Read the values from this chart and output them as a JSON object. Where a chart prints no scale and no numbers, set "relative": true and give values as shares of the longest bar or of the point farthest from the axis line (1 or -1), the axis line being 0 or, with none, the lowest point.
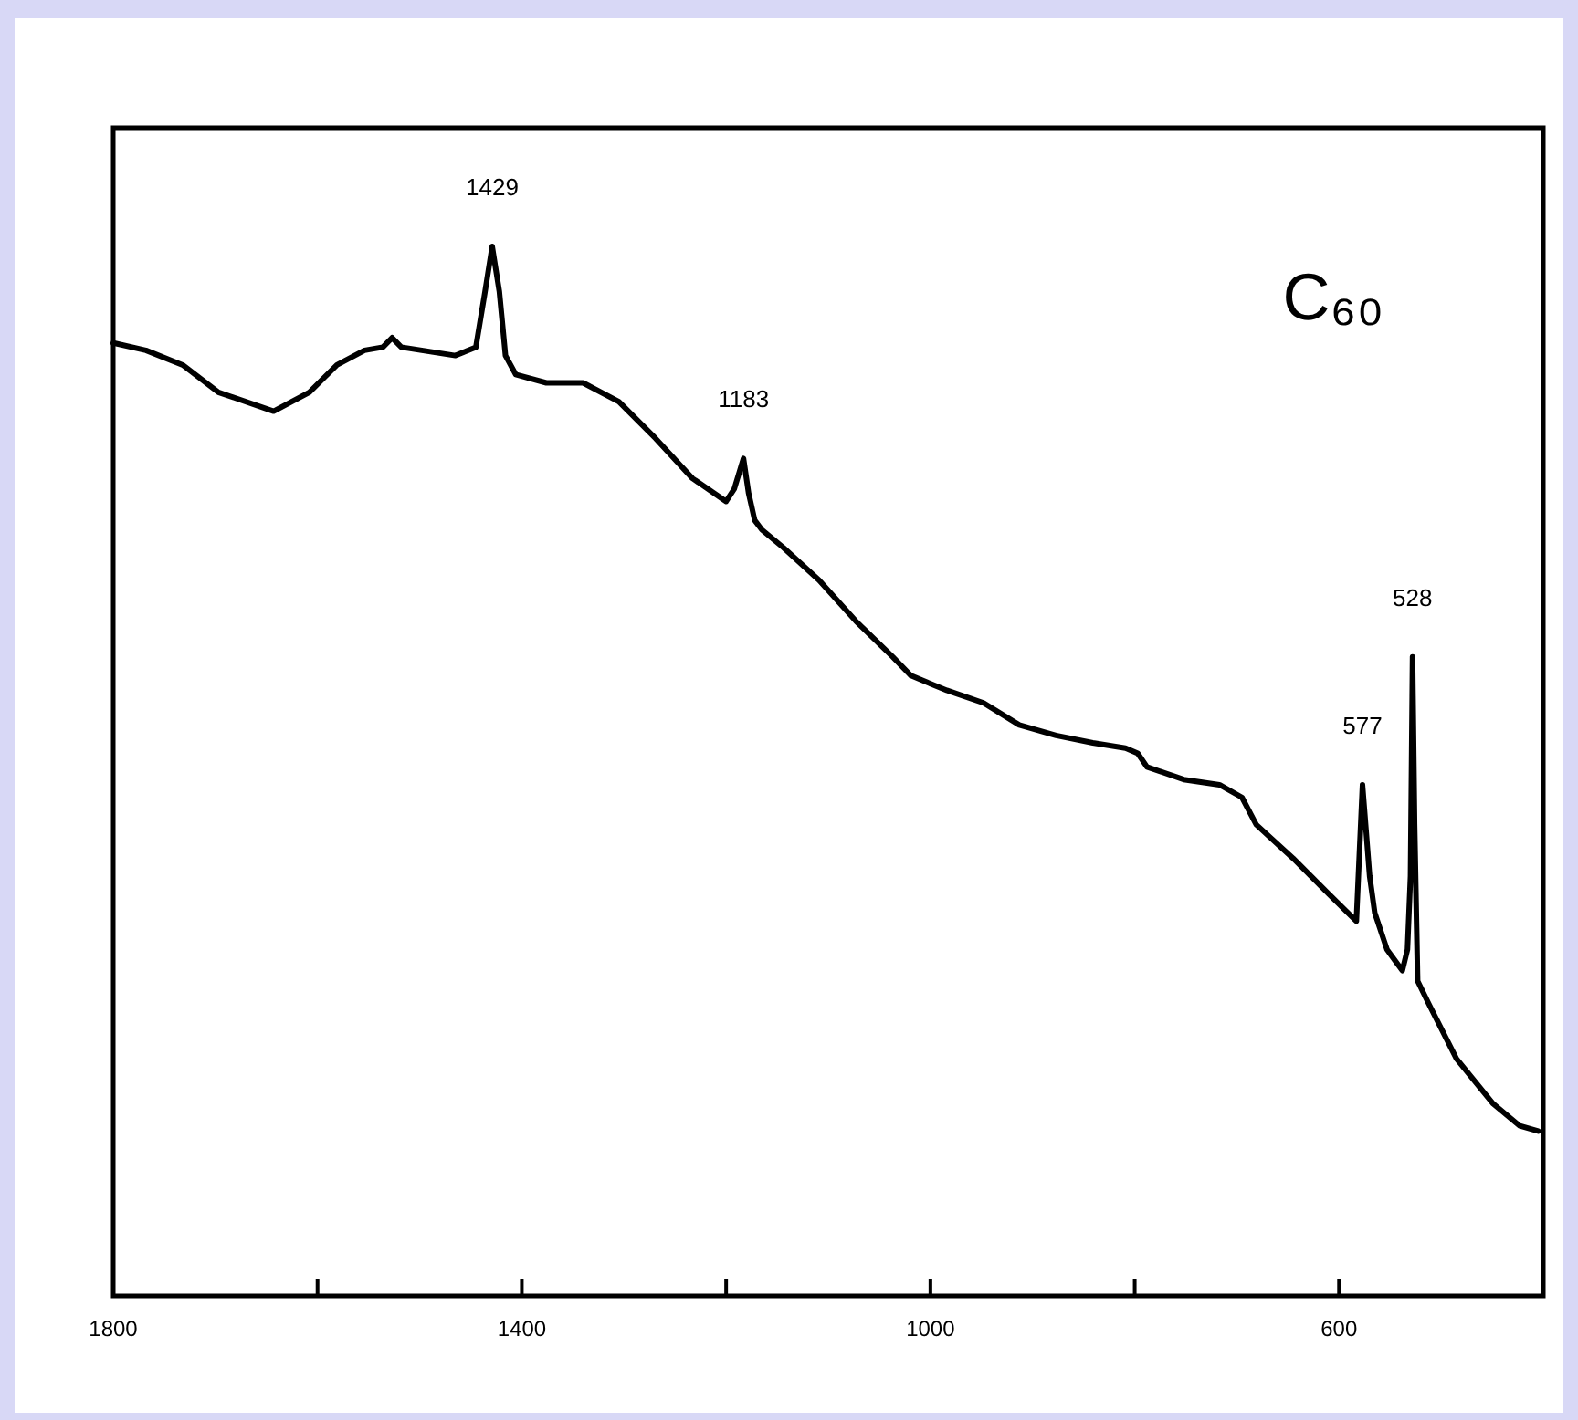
{
  "chart_data": {
    "type": "line",
    "title": "C₆₀",
    "relative": true,
    "color": "#000000",
    "x": [
      1800,
      1768,
      1732,
      1697,
      1643,
      1608,
      1581,
      1554,
      1536,
      1527,
      1518,
      1465,
      1445,
      1436,
      1429,
      1422,
      1416,
      1406,
      1376,
      1340,
      1305,
      1269,
      1233,
      1200,
      1192,
      1183,
      1178,
      1172,
      1165,
      1144,
      1109,
      1073,
      1037,
      1019,
      984,
      948,
      913,
      877,
      841,
      809,
      797,
      788,
      752,
      717,
      695,
      681,
      645,
      610,
      583,
      577,
      570,
      565,
      553,
      538,
      533,
      530,
      528,
      526,
      523,
      512,
      485,
      449,
      423,
      405
    ],
    "values": [
      0.908,
      0.901,
      0.887,
      0.861,
      0.843,
      0.861,
      0.887,
      0.901,
      0.904,
      0.913,
      0.904,
      0.896,
      0.904,
      0.957,
      1.0,
      0.957,
      0.896,
      0.878,
      0.87,
      0.87,
      0.852,
      0.817,
      0.779,
      0.757,
      0.769,
      0.798,
      0.765,
      0.739,
      0.73,
      0.713,
      0.682,
      0.643,
      0.609,
      0.591,
      0.577,
      0.565,
      0.544,
      0.534,
      0.527,
      0.522,
      0.517,
      0.504,
      0.492,
      0.487,
      0.475,
      0.449,
      0.417,
      0.383,
      0.357,
      0.487,
      0.4,
      0.365,
      0.33,
      0.31,
      0.33,
      0.4,
      0.609,
      0.45,
      0.3,
      0.278,
      0.226,
      0.183,
      0.162,
      0.157
    ],
    "xlim": [
      1800,
      400
    ],
    "xticks": [
      1800,
      {
        "value": 1600,
        "label": null
      },
      1400,
      {
        "value": 1200,
        "label": null
      },
      1000,
      {
        "value": 800,
        "label": null
      },
      600
    ],
    "annotations": [
      {
        "text": "1429",
        "x": 1429,
        "y": 1.0
      },
      {
        "text": "1183",
        "x": 1183,
        "y": 0.798
      },
      {
        "text": "577",
        "x": 577,
        "y": 0.487
      },
      {
        "text": "528",
        "x": 528,
        "y": 0.609
      }
    ]
  }
}
